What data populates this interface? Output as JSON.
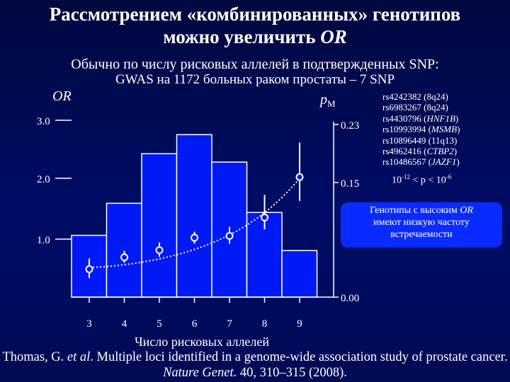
{
  "title_line1": "Рассмотрением «комбинированных» генотипов",
  "title_line2": "можно увеличить",
  "title_or": "OR",
  "subtitle_line1": "Обычно по числу рисковых аллелей в подтвержденных SNP:",
  "subtitle_line2": "GWAS на 1172 больных раком простаты – 7 SNP",
  "snps": [
    {
      "id": "rs4242382",
      "gene": "8q24",
      "italic": false
    },
    {
      "id": "rs6983267",
      "gene": "8q24",
      "italic": false
    },
    {
      "id": "rs4430796",
      "gene": "HNF1B",
      "italic": true
    },
    {
      "id": "rs10993994",
      "gene": "MSMB",
      "italic": true
    },
    {
      "id": "rs10896449",
      "gene": "11q13",
      "italic": false
    },
    {
      "id": "rs4962416",
      "gene": "CTBP2",
      "italic": true
    },
    {
      "id": "rs10486567",
      "gene": "JAZF1",
      "italic": true
    }
  ],
  "pvalue": {
    "base1": "10",
    "exp1": "-12",
    "mid": " < p < ",
    "base2": "10",
    "exp2": "-6"
  },
  "callout": {
    "text_before": "Генотипы с высоким ",
    "or": "OR",
    "text_after": "имеют низкую частоту встречаемости"
  },
  "citation": {
    "before": "Thomas, G. ",
    "etal": "et al",
    "middle": ". Multiple loci identified in a genome-wide association study of prostate cancer. ",
    "journal": "Nature Genet.",
    "after": " 40, 310–315 (2008)."
  },
  "colors": {
    "bar_fill": "#0019f5",
    "bar_stroke": "#ffffff",
    "callout": "#0a2bff",
    "background": "#000a55"
  },
  "chart_data": {
    "type": "bar",
    "xlabel": "Число рисковых аллелей",
    "left_axis_label": "OR",
    "right_axis_label": "pM",
    "left_ylim": [
      0.0,
      3.0
    ],
    "left_ticks": [
      "3.0",
      "2.0",
      "1.0"
    ],
    "right_ylim": [
      0.0,
      0.23
    ],
    "right_ticks": [
      "0.23",
      "0.15",
      "0.00"
    ],
    "categories": [
      "3",
      "4",
      "5",
      "6",
      "7",
      "8",
      "9"
    ],
    "bar_values_pM": [
      0.081,
      0.123,
      0.188,
      0.213,
      0.177,
      0.111,
      0.061
    ],
    "or_points": [
      {
        "x": "3",
        "or": 0.47,
        "lo": 0.32,
        "hi": 0.65
      },
      {
        "x": "4",
        "or": 0.67,
        "lo": 0.58,
        "hi": 0.78
      },
      {
        "x": "5",
        "or": 0.79,
        "lo": 0.68,
        "hi": 0.92
      },
      {
        "x": "6",
        "or": 1.0,
        "lo": 0.9,
        "hi": 1.1
      },
      {
        "x": "7",
        "or": 1.03,
        "lo": 0.9,
        "hi": 1.18
      },
      {
        "x": "8",
        "or": 1.34,
        "lo": 1.14,
        "hi": 1.72
      },
      {
        "x": "9",
        "or": 2.02,
        "lo": 1.62,
        "hi": 2.6
      }
    ],
    "trend": "exponential-dotted",
    "grid": false
  }
}
